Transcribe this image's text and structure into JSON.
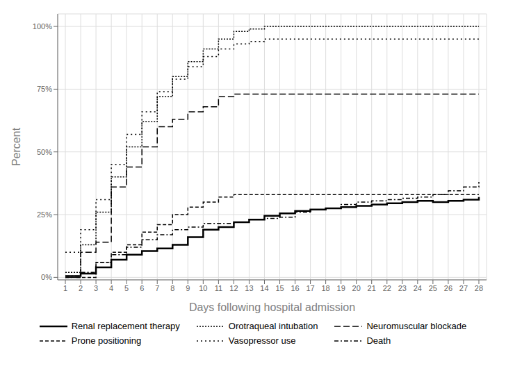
{
  "chart_data": {
    "type": "step",
    "xlabel": "Days following hospital admission",
    "ylabel": "Percent",
    "x": [
      1,
      2,
      3,
      4,
      5,
      6,
      7,
      8,
      9,
      10,
      11,
      12,
      13,
      14,
      15,
      16,
      17,
      18,
      19,
      20,
      21,
      22,
      23,
      24,
      25,
      26,
      27,
      28
    ],
    "xlim": [
      0.5,
      28.5
    ],
    "xticks": [
      1,
      2,
      3,
      4,
      5,
      6,
      7,
      8,
      9,
      10,
      11,
      12,
      13,
      14,
      15,
      16,
      17,
      18,
      19,
      20,
      21,
      22,
      23,
      24,
      25,
      26,
      27,
      28
    ],
    "ylim": [
      -0.01,
      1.05
    ],
    "yticks": [
      {
        "value": 0,
        "label": "0%"
      },
      {
        "value": 0.25,
        "label": "25%"
      },
      {
        "value": 0.5,
        "label": "50%"
      },
      {
        "value": 0.75,
        "label": "75%"
      },
      {
        "value": 1.0,
        "label": "100%"
      }
    ],
    "grid": true,
    "legend": "bottom",
    "series": [
      {
        "name": "Renal replacement therapy",
        "color": "#000000",
        "line_style": "solid",
        "values": [
          0.005,
          0.015,
          0.04,
          0.07,
          0.09,
          0.105,
          0.115,
          0.13,
          0.16,
          0.19,
          0.2,
          0.22,
          0.23,
          0.245,
          0.255,
          0.265,
          0.27,
          0.275,
          0.28,
          0.285,
          0.29,
          0.295,
          0.3,
          0.305,
          0.3,
          0.305,
          0.31,
          0.32
        ]
      },
      {
        "name": "Orotraqueal intubation",
        "color": "#000000",
        "line_style": "densedot",
        "values": [
          0.02,
          0.13,
          0.26,
          0.4,
          0.52,
          0.62,
          0.72,
          0.8,
          0.86,
          0.91,
          0.95,
          0.98,
          0.99,
          1.0,
          1.0,
          1.0,
          1.0,
          1.0,
          1.0,
          1.0,
          1.0,
          1.0,
          1.0,
          1.0,
          1.0,
          1.0,
          1.0,
          1.0
        ]
      },
      {
        "name": "Neuromuscular blockade",
        "color": "#000000",
        "line_style": "longdash",
        "values": [
          0.0,
          0.1,
          0.14,
          0.36,
          0.44,
          0.52,
          0.6,
          0.63,
          0.66,
          0.68,
          0.72,
          0.73,
          0.73,
          0.73,
          0.73,
          0.73,
          0.73,
          0.73,
          0.73,
          0.73,
          0.73,
          0.73,
          0.73,
          0.73,
          0.73,
          0.73,
          0.73,
          0.73
        ]
      },
      {
        "name": "Prone positioning",
        "color": "#000000",
        "line_style": "dash",
        "values": [
          0.0,
          0.0,
          0.06,
          0.1,
          0.13,
          0.18,
          0.21,
          0.25,
          0.28,
          0.3,
          0.32,
          0.33,
          0.33,
          0.33,
          0.33,
          0.33,
          0.33,
          0.33,
          0.33,
          0.33,
          0.33,
          0.33,
          0.33,
          0.33,
          0.33,
          0.33,
          0.33,
          0.33
        ]
      },
      {
        "name": "Vasopressor use",
        "color": "#000000",
        "line_style": "dot",
        "values": [
          0.1,
          0.19,
          0.31,
          0.45,
          0.57,
          0.66,
          0.74,
          0.79,
          0.84,
          0.88,
          0.91,
          0.93,
          0.94,
          0.95,
          0.95,
          0.95,
          0.95,
          0.95,
          0.95,
          0.95,
          0.95,
          0.95,
          0.95,
          0.95,
          0.95,
          0.95,
          0.95,
          0.95
        ]
      },
      {
        "name": "Death",
        "color": "#000000",
        "line_style": "dashdot",
        "values": [
          0.005,
          0.02,
          0.06,
          0.09,
          0.12,
          0.15,
          0.17,
          0.19,
          0.2,
          0.215,
          0.215,
          0.22,
          0.23,
          0.235,
          0.24,
          0.26,
          0.27,
          0.275,
          0.29,
          0.3,
          0.305,
          0.31,
          0.315,
          0.32,
          0.33,
          0.345,
          0.36,
          0.38
        ]
      }
    ]
  }
}
